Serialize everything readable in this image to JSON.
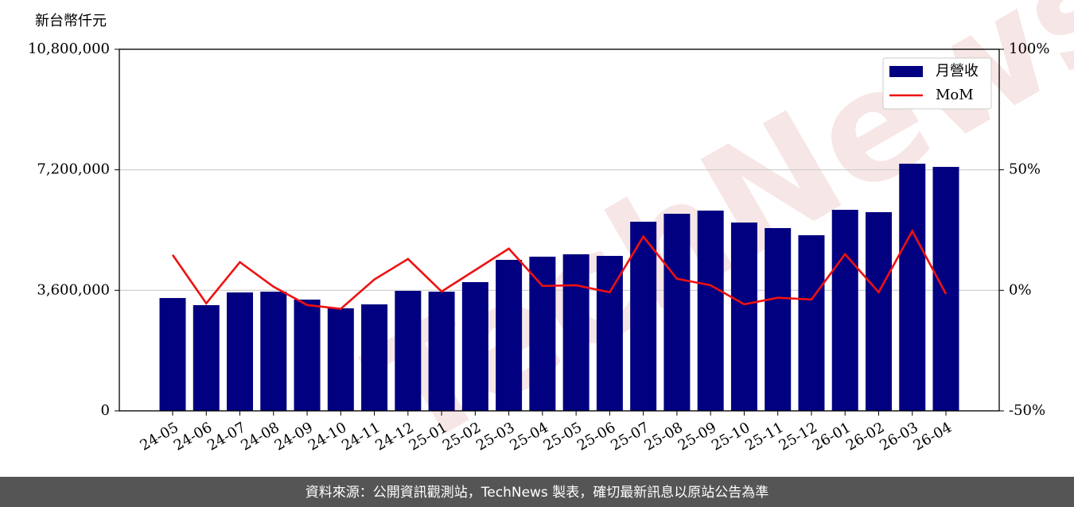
{
  "chart_data": {
    "type": "bar",
    "y_unit_label": "新台幣仟元",
    "watermark": "TechNews",
    "footer": "資料來源：公開資訊觀測站，TechNews 製表，確切最新訊息以原站公告為準",
    "categories": [
      "24-05",
      "24-06",
      "24-07",
      "24-08",
      "24-09",
      "24-10",
      "24-11",
      "24-12",
      "25-01",
      "25-02",
      "25-03",
      "25-04",
      "25-05",
      "25-06",
      "25-07",
      "25-08",
      "25-09",
      "25-10",
      "25-11",
      "25-12",
      "26-01",
      "26-02",
      "26-03",
      "26-04"
    ],
    "series": [
      {
        "name": "月營收",
        "type": "bar",
        "color": "#000080",
        "values": [
          3370000,
          3157000,
          3537000,
          3560000,
          3323000,
          3062000,
          3180000,
          3584000,
          3560000,
          3845000,
          4510000,
          4605000,
          4676000,
          4628000,
          5649000,
          5887000,
          5981000,
          5625000,
          5459000,
          5246000,
          6005000,
          5934000,
          7382000,
          7287000
        ]
      },
      {
        "name": "MoM",
        "type": "line",
        "color": "#ee1111",
        "axis": "y2",
        "values": [
          14.7,
          -5.4,
          11.7,
          1.5,
          -6.1,
          -7.7,
          4.5,
          13.0,
          -0.5,
          8.4,
          17.3,
          1.8,
          2.1,
          -0.8,
          22.3,
          4.8,
          2.1,
          -5.8,
          -3.1,
          -3.8,
          15.0,
          -0.8,
          24.6,
          -1.5
        ]
      }
    ],
    "ylim": [
      0,
      10800000
    ],
    "yticks": [
      0,
      {
        "value": 3600000,
        "label": "3,600,000"
      },
      {
        "value": 7200000,
        "label": "7,200,000"
      },
      {
        "value": 10800000,
        "label": "10,800,000"
      }
    ],
    "y2lim": [
      -50,
      100
    ],
    "y2ticks": [
      {
        "value": -50,
        "label": "-50%"
      },
      {
        "value": 0,
        "label": "0%"
      },
      {
        "value": 50,
        "label": "50%"
      },
      {
        "value": 100,
        "label": "100%"
      }
    ],
    "grid": true,
    "legend": "upper right"
  }
}
